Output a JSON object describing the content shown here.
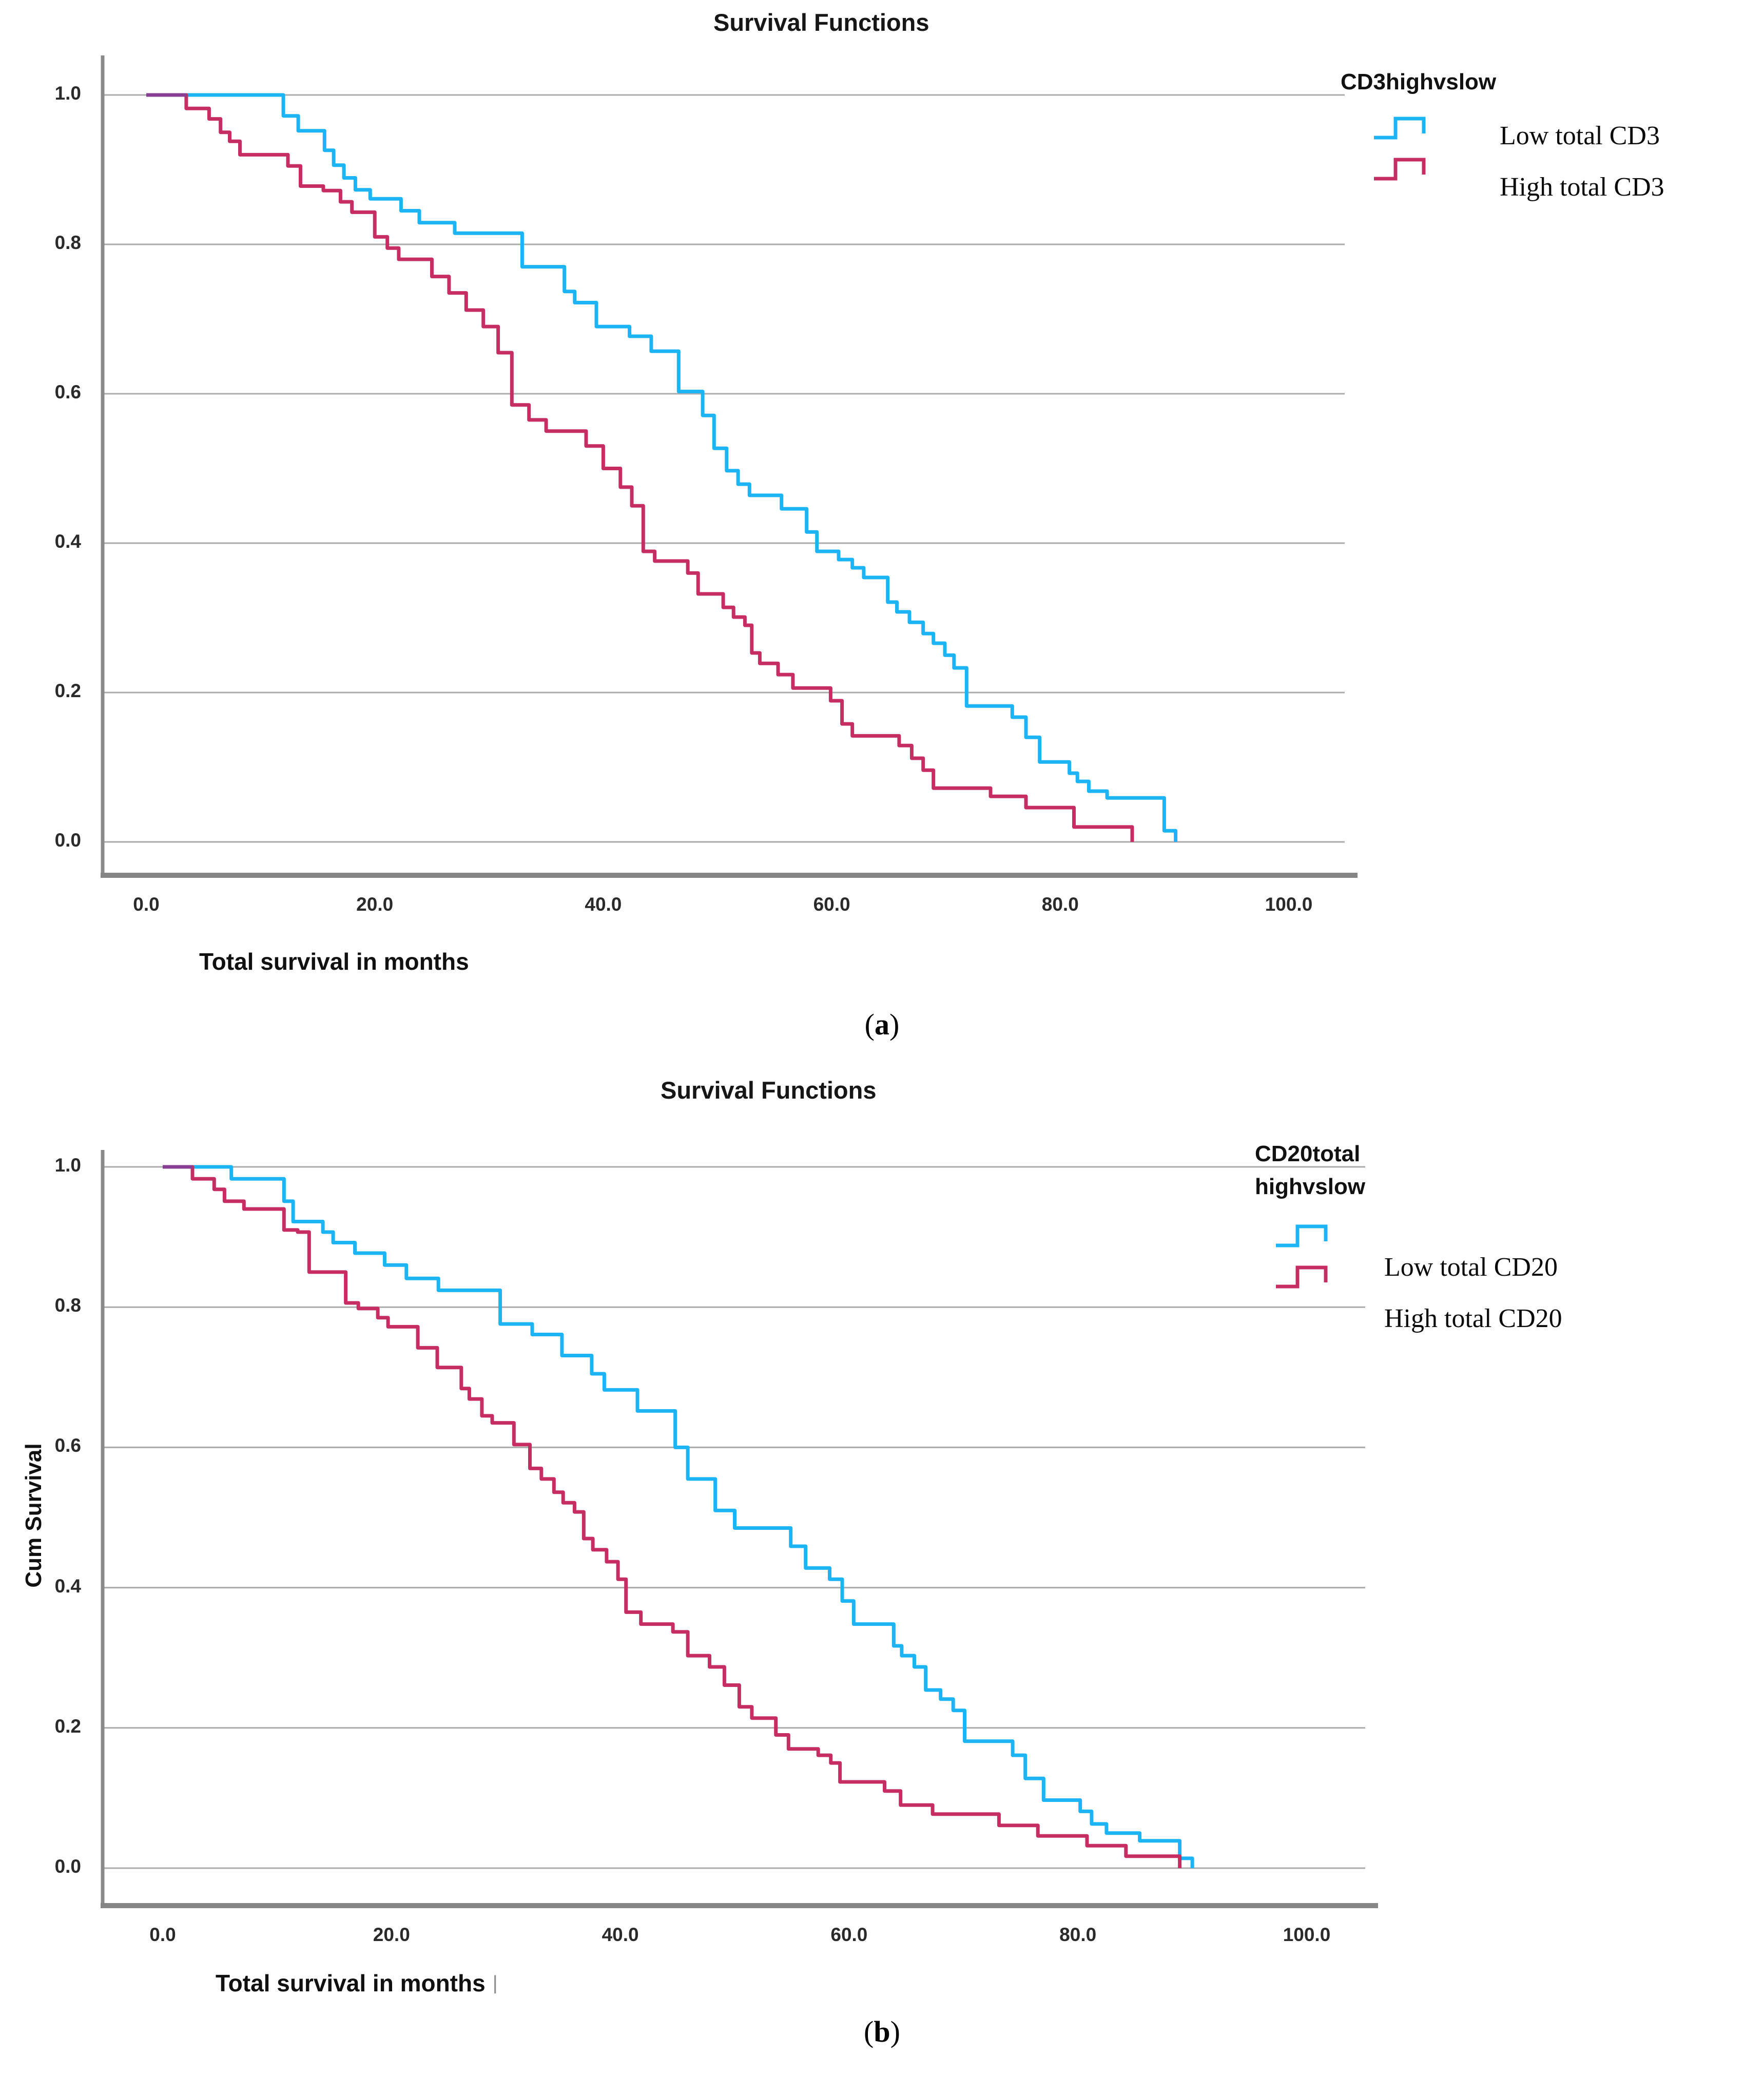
{
  "figure": {
    "captions": [
      {
        "prefix": "(",
        "letter": "a",
        "suffix": ")"
      },
      {
        "prefix": "(",
        "letter": "b",
        "suffix": ")"
      }
    ]
  },
  "chart_data": [
    {
      "type": "line",
      "subtype": "kaplan-meier-step",
      "title": "Survival Functions",
      "xlabel": "Total survival in months",
      "xlabel_artifact": "",
      "ylabel": "",
      "xlim": [
        0,
        100
      ],
      "ylim": [
        0.0,
        1.0
      ],
      "grid": "horizontal",
      "legend_position": "right-top",
      "legend_title_lines": [
        "CD3highvslow"
      ],
      "x_tick_values": [
        0,
        20,
        40,
        60,
        80,
        100
      ],
      "x_tick_labels": [
        "0.0",
        "20.0",
        "40.0",
        "60.0",
        "80.0",
        "100.0"
      ],
      "y_tick_values": [
        1.0,
        0.8,
        0.6,
        0.4,
        0.2,
        0.0
      ],
      "y_tick_labels": [
        "1.0",
        "0.8",
        "0.6",
        "0.4",
        "0.2",
        "0.0"
      ],
      "gridline_color": "#ababab",
      "axis_color": "#858585",
      "overlap_color": "#8a3e93",
      "series": [
        {
          "name": "Low total CD3",
          "color": "#1cb4f4",
          "points": [
            [
              0,
              1.0
            ],
            [
              12,
              0.972
            ],
            [
              13.3,
              0.952
            ],
            [
              15.6,
              0.926
            ],
            [
              16.4,
              0.906
            ],
            [
              17.3,
              0.889
            ],
            [
              18.3,
              0.873
            ],
            [
              19.6,
              0.861
            ],
            [
              22.3,
              0.845
            ],
            [
              23.9,
              0.829
            ],
            [
              27,
              0.815
            ],
            [
              32.9,
              0.77
            ],
            [
              36.6,
              0.737
            ],
            [
              37.5,
              0.722
            ],
            [
              39.4,
              0.69
            ],
            [
              42.3,
              0.677
            ],
            [
              44.2,
              0.657
            ],
            [
              46.6,
              0.603
            ],
            [
              48.7,
              0.571
            ],
            [
              49.7,
              0.527
            ],
            [
              50.8,
              0.497
            ],
            [
              51.8,
              0.479
            ],
            [
              52.8,
              0.464
            ],
            [
              55.6,
              0.446
            ],
            [
              57.8,
              0.415
            ],
            [
              58.7,
              0.389
            ],
            [
              60.6,
              0.378
            ],
            [
              61.8,
              0.367
            ],
            [
              62.8,
              0.354
            ],
            [
              64.9,
              0.321
            ],
            [
              65.7,
              0.308
            ],
            [
              66.8,
              0.294
            ],
            [
              68,
              0.279
            ],
            [
              68.9,
              0.266
            ],
            [
              69.9,
              0.25
            ],
            [
              70.7,
              0.233
            ],
            [
              71.8,
              0.182
            ],
            [
              75.8,
              0.167
            ],
            [
              77,
              0.14
            ],
            [
              78.2,
              0.107
            ],
            [
              80.8,
              0.092
            ],
            [
              81.5,
              0.081
            ],
            [
              82.5,
              0.068
            ],
            [
              84.1,
              0.059
            ],
            [
              89.1,
              0.015
            ],
            [
              90.1,
              0
            ]
          ]
        },
        {
          "name": "High total CD3",
          "color": "#c62e63",
          "points": [
            [
              0,
              1.0
            ],
            [
              3.5,
              0.982
            ],
            [
              5.5,
              0.968
            ],
            [
              6.5,
              0.95
            ],
            [
              7.3,
              0.938
            ],
            [
              8.2,
              0.92
            ],
            [
              12.4,
              0.905
            ],
            [
              13.5,
              0.878
            ],
            [
              15.5,
              0.872
            ],
            [
              17,
              0.857
            ],
            [
              18,
              0.843
            ],
            [
              20,
              0.81
            ],
            [
              21.1,
              0.795
            ],
            [
              22.1,
              0.78
            ],
            [
              25,
              0.757
            ],
            [
              26.5,
              0.735
            ],
            [
              28,
              0.712
            ],
            [
              29.5,
              0.69
            ],
            [
              30.8,
              0.655
            ],
            [
              32,
              0.585
            ],
            [
              33.5,
              0.565
            ],
            [
              35,
              0.55
            ],
            [
              38.5,
              0.53
            ],
            [
              40,
              0.5
            ],
            [
              41.5,
              0.475
            ],
            [
              42.5,
              0.45
            ],
            [
              43.5,
              0.389
            ],
            [
              44.5,
              0.376
            ],
            [
              47.4,
              0.36
            ],
            [
              48.3,
              0.332
            ],
            [
              50.5,
              0.314
            ],
            [
              51.4,
              0.301
            ],
            [
              52.4,
              0.29
            ],
            [
              53,
              0.253
            ],
            [
              53.7,
              0.239
            ],
            [
              55.3,
              0.224
            ],
            [
              56.6,
              0.206
            ],
            [
              59.9,
              0.189
            ],
            [
              60.9,
              0.158
            ],
            [
              61.8,
              0.142
            ],
            [
              65.9,
              0.129
            ],
            [
              67,
              0.112
            ],
            [
              68,
              0.096
            ],
            [
              68.9,
              0.072
            ],
            [
              73.9,
              0.061
            ],
            [
              77,
              0.046
            ],
            [
              81.2,
              0.02
            ],
            [
              86.3,
              0
            ]
          ]
        }
      ]
    },
    {
      "type": "line",
      "subtype": "kaplan-meier-step",
      "title": "Survival Functions",
      "xlabel": "Total survival in months",
      "xlabel_artifact": "|",
      "ylabel": "Cum Survival",
      "xlim": [
        0,
        100
      ],
      "ylim": [
        0.0,
        1.0
      ],
      "grid": "horizontal",
      "legend_position": "right-top",
      "legend_title_lines": [
        "CD20total",
        "highvslow"
      ],
      "x_tick_values": [
        0,
        20,
        40,
        60,
        80,
        100
      ],
      "x_tick_labels": [
        "0.0",
        "20.0",
        "40.0",
        "60.0",
        "80.0",
        "100.0"
      ],
      "y_tick_values": [
        1.0,
        0.8,
        0.6,
        0.4,
        0.2,
        0.0
      ],
      "y_tick_labels": [
        "1.0",
        "0.8",
        "0.6",
        "0.4",
        "0.2",
        "0.0"
      ],
      "gridline_color": "#ababab",
      "axis_color": "#858585",
      "overlap_color": "#8a3e93",
      "series": [
        {
          "name": "Low total CD20",
          "color": "#1cb4f4",
          "points": [
            [
              0,
              1.0
            ],
            [
              6,
              0.983
            ],
            [
              10.6,
              0.951
            ],
            [
              11.4,
              0.922
            ],
            [
              14,
              0.907
            ],
            [
              14.9,
              0.892
            ],
            [
              16.8,
              0.877
            ],
            [
              19.4,
              0.86
            ],
            [
              21.3,
              0.841
            ],
            [
              24.1,
              0.824
            ],
            [
              29.5,
              0.776
            ],
            [
              32.3,
              0.761
            ],
            [
              34.9,
              0.731
            ],
            [
              37.5,
              0.705
            ],
            [
              38.6,
              0.682
            ],
            [
              41.5,
              0.652
            ],
            [
              44.8,
              0.6
            ],
            [
              45.9,
              0.555
            ],
            [
              48.3,
              0.51
            ],
            [
              50,
              0.485
            ],
            [
              54.9,
              0.459
            ],
            [
              56.2,
              0.428
            ],
            [
              58.3,
              0.412
            ],
            [
              59.4,
              0.381
            ],
            [
              60.4,
              0.348
            ],
            [
              63.9,
              0.317
            ],
            [
              64.6,
              0.303
            ],
            [
              65.7,
              0.287
            ],
            [
              66.7,
              0.254
            ],
            [
              68,
              0.241
            ],
            [
              69.1,
              0.225
            ],
            [
              70.1,
              0.181
            ],
            [
              74.3,
              0.161
            ],
            [
              75.4,
              0.128
            ],
            [
              77,
              0.097
            ],
            [
              80.2,
              0.081
            ],
            [
              81.2,
              0.063
            ],
            [
              82.5,
              0.05
            ],
            [
              85.4,
              0.039
            ],
            [
              88.9,
              0.014
            ],
            [
              90,
              0
            ]
          ]
        },
        {
          "name": "High total CD20",
          "color": "#c62e63",
          "points": [
            [
              0,
              1.0
            ],
            [
              2.6,
              0.983
            ],
            [
              4.5,
              0.968
            ],
            [
              5.4,
              0.951
            ],
            [
              7.1,
              0.94
            ],
            [
              10.6,
              0.91
            ],
            [
              11.8,
              0.907
            ],
            [
              12.8,
              0.85
            ],
            [
              16,
              0.806
            ],
            [
              17.1,
              0.798
            ],
            [
              18.8,
              0.785
            ],
            [
              19.7,
              0.772
            ],
            [
              22.3,
              0.742
            ],
            [
              24,
              0.714
            ],
            [
              26.1,
              0.684
            ],
            [
              26.8,
              0.669
            ],
            [
              27.9,
              0.645
            ],
            [
              28.8,
              0.635
            ],
            [
              30.7,
              0.604
            ],
            [
              32.1,
              0.57
            ],
            [
              33.1,
              0.555
            ],
            [
              34.2,
              0.536
            ],
            [
              35,
              0.521
            ],
            [
              36,
              0.508
            ],
            [
              36.8,
              0.47
            ],
            [
              37.6,
              0.454
            ],
            [
              38.8,
              0.437
            ],
            [
              39.8,
              0.412
            ],
            [
              40.5,
              0.365
            ],
            [
              41.8,
              0.348
            ],
            [
              44.6,
              0.337
            ],
            [
              45.9,
              0.303
            ],
            [
              47.8,
              0.287
            ],
            [
              49.1,
              0.261
            ],
            [
              50.4,
              0.23
            ],
            [
              51.5,
              0.214
            ],
            [
              53.6,
              0.19
            ],
            [
              54.7,
              0.17
            ],
            [
              57.3,
              0.161
            ],
            [
              58.4,
              0.15
            ],
            [
              59.2,
              0.123
            ],
            [
              63.1,
              0.11
            ],
            [
              64.5,
              0.09
            ],
            [
              67.3,
              0.077
            ],
            [
              73.1,
              0.061
            ],
            [
              76.5,
              0.046
            ],
            [
              80.8,
              0.032
            ],
            [
              84.2,
              0.017
            ],
            [
              88.9,
              0
            ]
          ]
        }
      ]
    }
  ]
}
